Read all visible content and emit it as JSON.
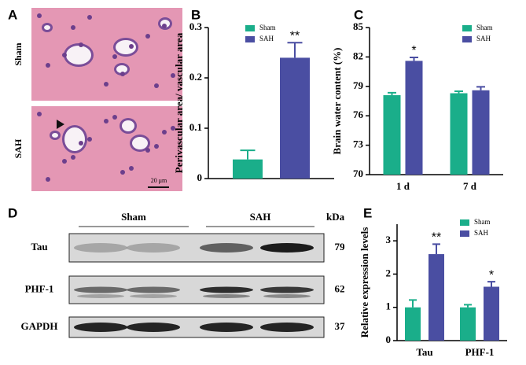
{
  "histology": {
    "panel": "A",
    "rows": [
      "Sham",
      "SAH"
    ],
    "scale_bar": "20 μm"
  },
  "chart_data": [
    {
      "type": "bar",
      "panel": "B",
      "ylabel": "Perivascular area/ vascular area",
      "categories": [
        null
      ],
      "series": [
        {
          "name": "Sham",
          "color": "#1aae8a",
          "values": [
            0.038
          ],
          "errors": [
            0.018
          ],
          "significance": [
            null
          ]
        },
        {
          "name": "SAH",
          "color": "#4a4ea2",
          "values": [
            0.24
          ],
          "errors": [
            0.03
          ],
          "significance": [
            "**"
          ]
        }
      ],
      "ylim": [
        0,
        0.3
      ],
      "yticks": [
        0,
        0.1,
        0.2,
        0.3
      ],
      "legend": "upper left"
    },
    {
      "type": "bar",
      "panel": "C",
      "ylabel": "Brain water content (%)",
      "categories": [
        "1 d",
        "7 d"
      ],
      "series": [
        {
          "name": "Sham",
          "color": "#1aae8a",
          "values": [
            78.1,
            78.3
          ],
          "errors": [
            0.25,
            0.2
          ],
          "significance": [
            null,
            null
          ]
        },
        {
          "name": "SAH",
          "color": "#4a4ea2",
          "values": [
            81.6,
            78.6
          ],
          "errors": [
            0.35,
            0.35
          ],
          "significance": [
            "*",
            null
          ]
        }
      ],
      "ylim": [
        70,
        85
      ],
      "yticks": [
        70,
        73,
        76,
        79,
        82,
        85
      ],
      "legend": "upper right"
    },
    {
      "type": "bar",
      "panel": "E",
      "ylabel": "Relative expression levels",
      "categories": [
        "Tau",
        "PHF-1"
      ],
      "series": [
        {
          "name": "Sham",
          "color": "#1aae8a",
          "values": [
            1.0,
            1.0
          ],
          "errors": [
            0.22,
            0.08
          ],
          "significance": [
            null,
            null
          ]
        },
        {
          "name": "SAH",
          "color": "#4a4ea2",
          "values": [
            2.6,
            1.62
          ],
          "errors": [
            0.3,
            0.15
          ],
          "significance": [
            "**",
            "*"
          ]
        }
      ],
      "ylim": [
        0,
        3.5
      ],
      "yticks": [
        0,
        1,
        2,
        3
      ],
      "legend": "upper right"
    }
  ],
  "western_blot": {
    "panel": "D",
    "groups": [
      "Sham",
      "SAH"
    ],
    "kda_header": "kDa",
    "rows": [
      {
        "label": "Tau",
        "kda": "79"
      },
      {
        "label": "PHF-1",
        "kda": "62"
      },
      {
        "label": "GAPDH",
        "kda": "37"
      }
    ]
  }
}
